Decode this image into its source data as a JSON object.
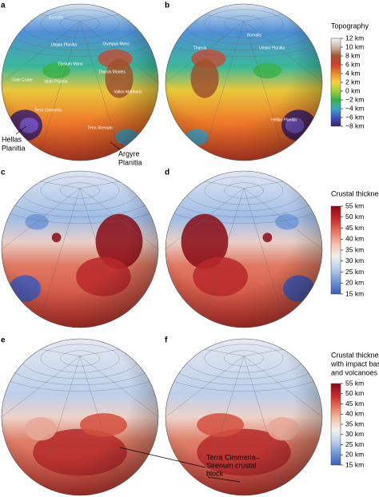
{
  "panels": [
    {
      "label": "a"
    },
    {
      "label": "b"
    },
    {
      "label": "c"
    },
    {
      "label": "d"
    },
    {
      "label": "e"
    },
    {
      "label": "f"
    }
  ],
  "globe_labels": {
    "a": [
      "Borealis",
      "Utopia Planitia",
      "Elysium Mons",
      "Isidis Planitia",
      "Olympus Mons",
      "Tharsis Montes",
      "Valles Marineris",
      "Terra Cimmeria",
      "Terra Sirenum",
      "Gale Crater"
    ],
    "b": [
      "Borealis",
      "Utopia Planitia",
      "Tharsis",
      "Hellas Planitia"
    ]
  },
  "annotations": {
    "hellas": [
      "Hellas",
      "Planitia"
    ],
    "argyre": [
      "Argyre",
      "Planitia"
    ],
    "block": [
      "Terra Cimmeria–",
      "Sirenum crustal",
      "block"
    ]
  },
  "colorbars": [
    {
      "title": [
        "Topography"
      ],
      "colors": [
        "#f4f4f4",
        "#c9b8a8",
        "#a0522d",
        "#d33a2a",
        "#ee8a2a",
        "#f5d43a",
        "#9ccf3a",
        "#38b24a",
        "#3aa7c8",
        "#3a55c0",
        "#3a1e6e"
      ],
      "ticks": [
        {
          "value": 12,
          "label": "12 km"
        },
        {
          "value": 10,
          "label": "10 km"
        },
        {
          "value": 8,
          "label": "8 km"
        },
        {
          "value": 6,
          "label": "6 km"
        },
        {
          "value": 4,
          "label": "4 km"
        },
        {
          "value": 2,
          "label": "2 km"
        },
        {
          "value": 0,
          "label": "0 km"
        },
        {
          "value": -2,
          "label": "−2 km"
        },
        {
          "value": -4,
          "label": "−4 km"
        },
        {
          "value": -6,
          "label": "−6 km"
        },
        {
          "value": -8,
          "label": "−8 km"
        }
      ]
    },
    {
      "title": [
        "Crustal thickness"
      ],
      "colors": [
        "#8a0b14",
        "#c8262a",
        "#e8735a",
        "#f5bfa8",
        "#f2f0ee",
        "#b9cfe8",
        "#6f96d6",
        "#3a5bc0"
      ],
      "ticks": [
        {
          "value": 55,
          "label": "55 km"
        },
        {
          "value": 50,
          "label": "50 km"
        },
        {
          "value": 45,
          "label": "45 km"
        },
        {
          "value": 40,
          "label": "40 km"
        },
        {
          "value": 35,
          "label": "35 km"
        },
        {
          "value": 30,
          "label": "30 km"
        },
        {
          "value": 25,
          "label": "25 km"
        },
        {
          "value": 20,
          "label": "20 km"
        },
        {
          "value": 15,
          "label": "15 km"
        }
      ]
    },
    {
      "title": [
        "Crustal thickness,",
        "with impact basins",
        "and volcanoes removed"
      ],
      "colors": [
        "#8a0b14",
        "#c8262a",
        "#e8735a",
        "#f5bfa8",
        "#f2f0ee",
        "#b9cfe8",
        "#6f96d6",
        "#3a5bc0"
      ],
      "ticks": [
        {
          "value": 55,
          "label": "55 km"
        },
        {
          "value": 50,
          "label": "50 km"
        },
        {
          "value": 45,
          "label": "45 km"
        },
        {
          "value": 40,
          "label": "40 km"
        },
        {
          "value": 35,
          "label": "35 km"
        },
        {
          "value": 30,
          "label": "30 km"
        },
        {
          "value": 25,
          "label": "25 km"
        },
        {
          "value": 20,
          "label": "20 km"
        },
        {
          "value": 15,
          "label": "15 km"
        }
      ]
    }
  ]
}
